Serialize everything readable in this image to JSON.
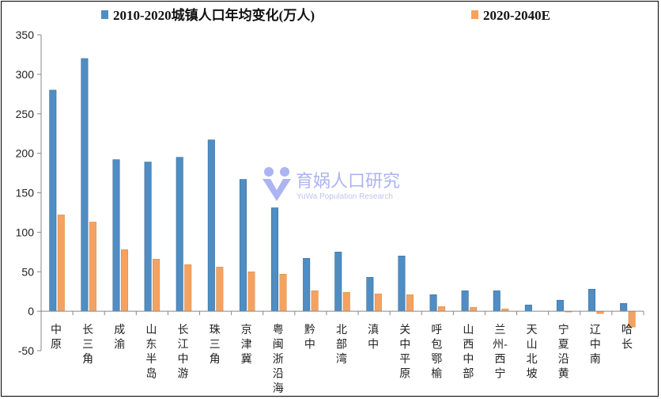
{
  "chart_data": {
    "type": "bar",
    "title": "",
    "xlabel": "",
    "ylabel": "",
    "ylim": [
      -50,
      350
    ],
    "yticks": [
      -50,
      0,
      50,
      100,
      150,
      200,
      250,
      300,
      350
    ],
    "grid": false,
    "legend": "top",
    "categories": [
      "中原",
      "长三角",
      "成渝",
      "山东半岛",
      "长江中游",
      "珠三角",
      "京津冀",
      "粤闽浙沿海",
      "黔中",
      "北部湾",
      "滇中",
      "关中平原",
      "呼包鄂榆",
      "山西中部",
      "兰州-西宁",
      "天山北坡",
      "宁夏沿黄",
      "辽中南",
      "哈长"
    ],
    "category_label_lines": [
      [
        "中",
        "原"
      ],
      [
        "长",
        "三",
        "角"
      ],
      [
        "成",
        "渝"
      ],
      [
        "山",
        "东",
        "半",
        "岛"
      ],
      [
        "长",
        "江",
        "中",
        "游"
      ],
      [
        "珠",
        "三",
        "角"
      ],
      [
        "京",
        "津",
        "冀"
      ],
      [
        "粤",
        "闽",
        "浙",
        "沿",
        "海"
      ],
      [
        "黔",
        "中"
      ],
      [
        "北",
        "部",
        "湾"
      ],
      [
        "滇",
        "中"
      ],
      [
        "关",
        "中",
        "平",
        "原"
      ],
      [
        "呼",
        "包",
        "鄂",
        "榆"
      ],
      [
        "山",
        "西",
        "中",
        "部"
      ],
      [
        "兰",
        "州-",
        "西",
        "宁"
      ],
      [
        "天",
        "山",
        "北",
        "坡"
      ],
      [
        "宁",
        "夏",
        "沿",
        "黄"
      ],
      [
        "辽",
        "中",
        "南"
      ],
      [
        "哈",
        "长"
      ]
    ],
    "series": [
      {
        "name": "2010-2020城镇人口年均变化(万人)",
        "color": "#4f8dc2",
        "values": [
          280,
          320,
          192,
          189,
          195,
          217,
          167,
          131,
          67,
          75,
          43,
          70,
          21,
          26,
          26,
          8,
          14,
          28,
          10
        ]
      },
      {
        "name": "2020-2040E",
        "color": "#f4a262",
        "values": [
          122,
          113,
          78,
          66,
          59,
          56,
          50,
          47,
          26,
          24,
          22,
          21,
          6,
          5,
          3,
          0,
          -1,
          -3,
          -20
        ]
      }
    ]
  },
  "watermark": {
    "text_cn": "育娲人口研究",
    "text_en": "YuWa Population Research",
    "logo_icon": "yuwa-logo-icon",
    "color": "#9ea7ef"
  }
}
